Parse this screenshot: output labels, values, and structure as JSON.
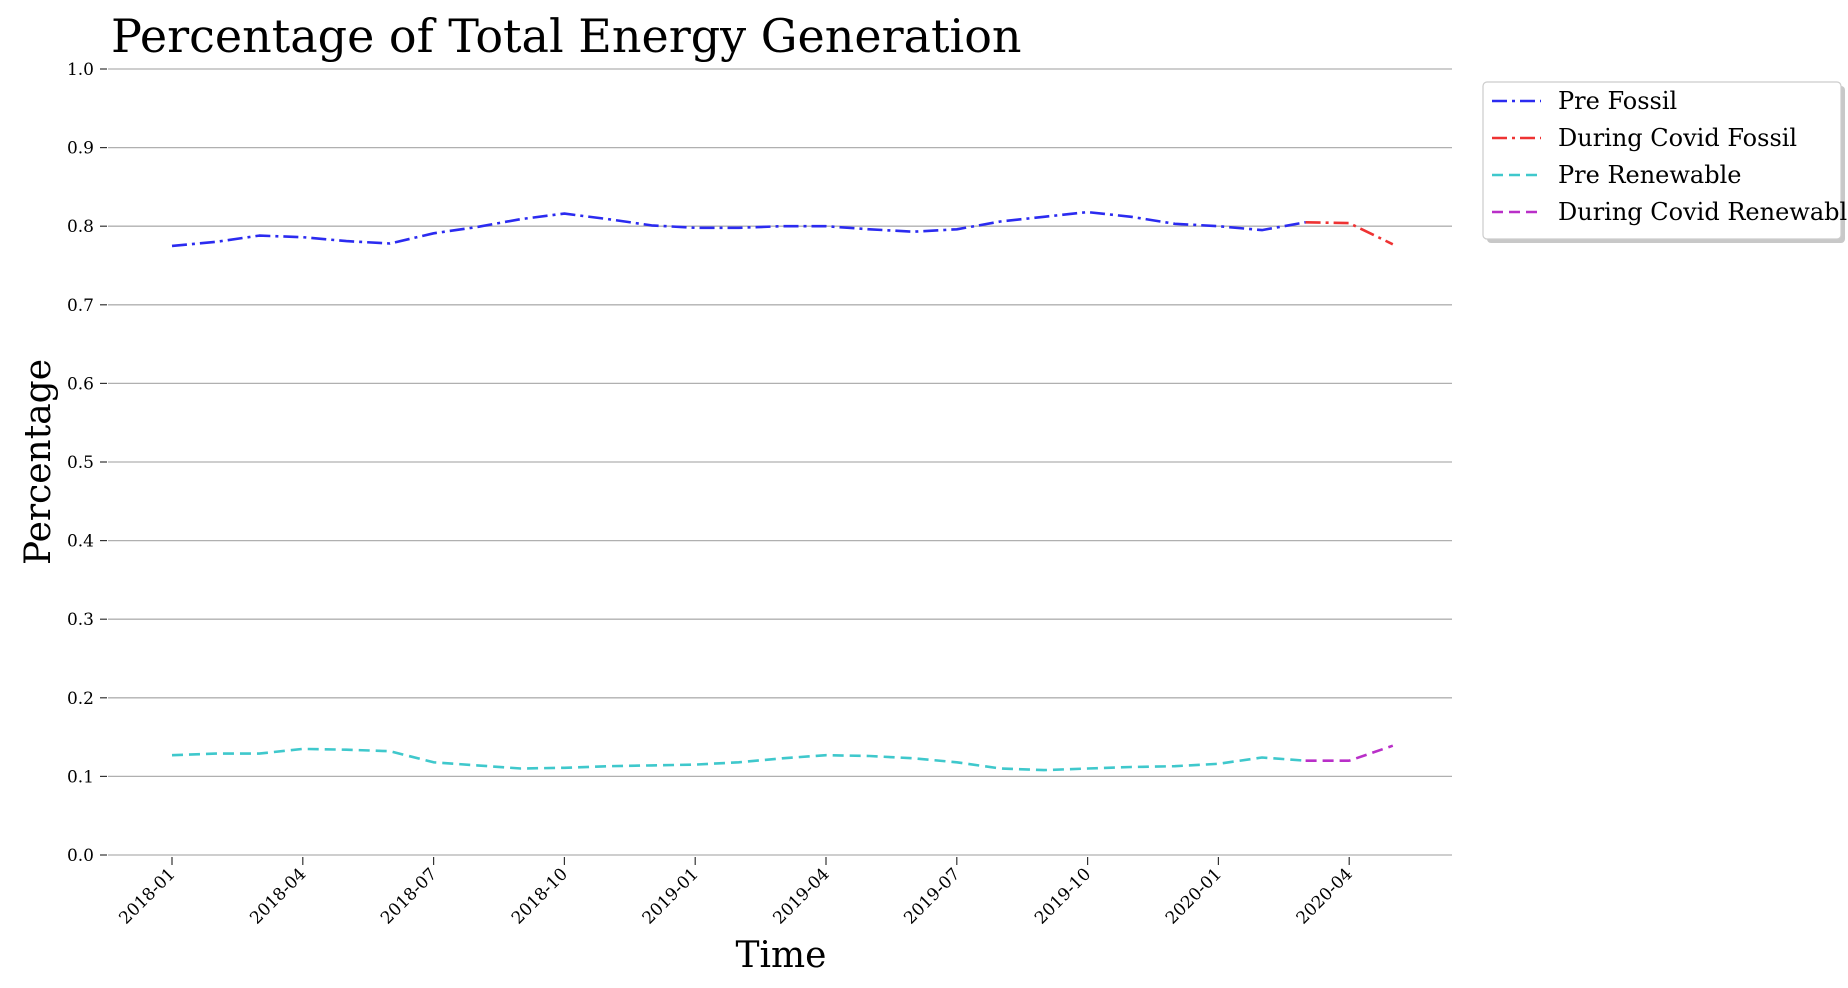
{
  "chart_data": {
    "type": "line",
    "title": "Percentage of Total Energy Generation",
    "xlabel": "Time",
    "ylabel": "Percentage",
    "ylim": [
      0.0,
      1.0
    ],
    "yticks": [
      "0.0",
      "0.1",
      "0.2",
      "0.3",
      "0.4",
      "0.5",
      "0.6",
      "0.7",
      "0.8",
      "0.9",
      "1.0"
    ],
    "xticks": [
      "2018-01",
      "2018-04",
      "2018-07",
      "2018-10",
      "2019-01",
      "2019-04",
      "2019-07",
      "2019-10",
      "2020-01",
      "2020-04"
    ],
    "grid": "horizontal",
    "legend_position": "upper-right-outside",
    "series": [
      {
        "name": "Pre Fossil",
        "color": "#2b2bf0",
        "style": "dashdot",
        "x": [
          "2018-01",
          "2018-02",
          "2018-03",
          "2018-04",
          "2018-05",
          "2018-06",
          "2018-07",
          "2018-08",
          "2018-09",
          "2018-10",
          "2018-11",
          "2018-12",
          "2019-01",
          "2019-02",
          "2019-03",
          "2019-04",
          "2019-05",
          "2019-06",
          "2019-07",
          "2019-08",
          "2019-09",
          "2019-10",
          "2019-11",
          "2019-12",
          "2020-01",
          "2020-02",
          "2020-03"
        ],
        "values": [
          0.775,
          0.78,
          0.788,
          0.786,
          0.781,
          0.778,
          0.791,
          0.799,
          0.809,
          0.816,
          0.809,
          0.801,
          0.798,
          0.798,
          0.8,
          0.8,
          0.796,
          0.793,
          0.796,
          0.806,
          0.812,
          0.818,
          0.812,
          0.803,
          0.8,
          0.795,
          0.805
        ]
      },
      {
        "name": "During Covid Fossil",
        "color": "#ee3333",
        "style": "dashdot",
        "x": [
          "2020-03",
          "2020-04",
          "2020-05"
        ],
        "values": [
          0.805,
          0.804,
          0.777
        ]
      },
      {
        "name": "Pre Renewable",
        "color": "#3fc8cc",
        "style": "dashed",
        "x": [
          "2018-01",
          "2018-02",
          "2018-03",
          "2018-04",
          "2018-05",
          "2018-06",
          "2018-07",
          "2018-08",
          "2018-09",
          "2018-10",
          "2018-11",
          "2018-12",
          "2019-01",
          "2019-02",
          "2019-03",
          "2019-04",
          "2019-05",
          "2019-06",
          "2019-07",
          "2019-08",
          "2019-09",
          "2019-10",
          "2019-11",
          "2019-12",
          "2020-01",
          "2020-02",
          "2020-03"
        ],
        "values": [
          0.127,
          0.129,
          0.129,
          0.135,
          0.134,
          0.132,
          0.118,
          0.114,
          0.11,
          0.111,
          0.113,
          0.114,
          0.115,
          0.118,
          0.123,
          0.127,
          0.126,
          0.123,
          0.118,
          0.11,
          0.108,
          0.11,
          0.112,
          0.113,
          0.116,
          0.124,
          0.12
        ]
      },
      {
        "name": "During Covid Renewable",
        "color": "#b92fc8",
        "style": "dashed",
        "x": [
          "2020-03",
          "2020-04",
          "2020-05"
        ],
        "values": [
          0.12,
          0.12,
          0.139
        ]
      }
    ]
  }
}
